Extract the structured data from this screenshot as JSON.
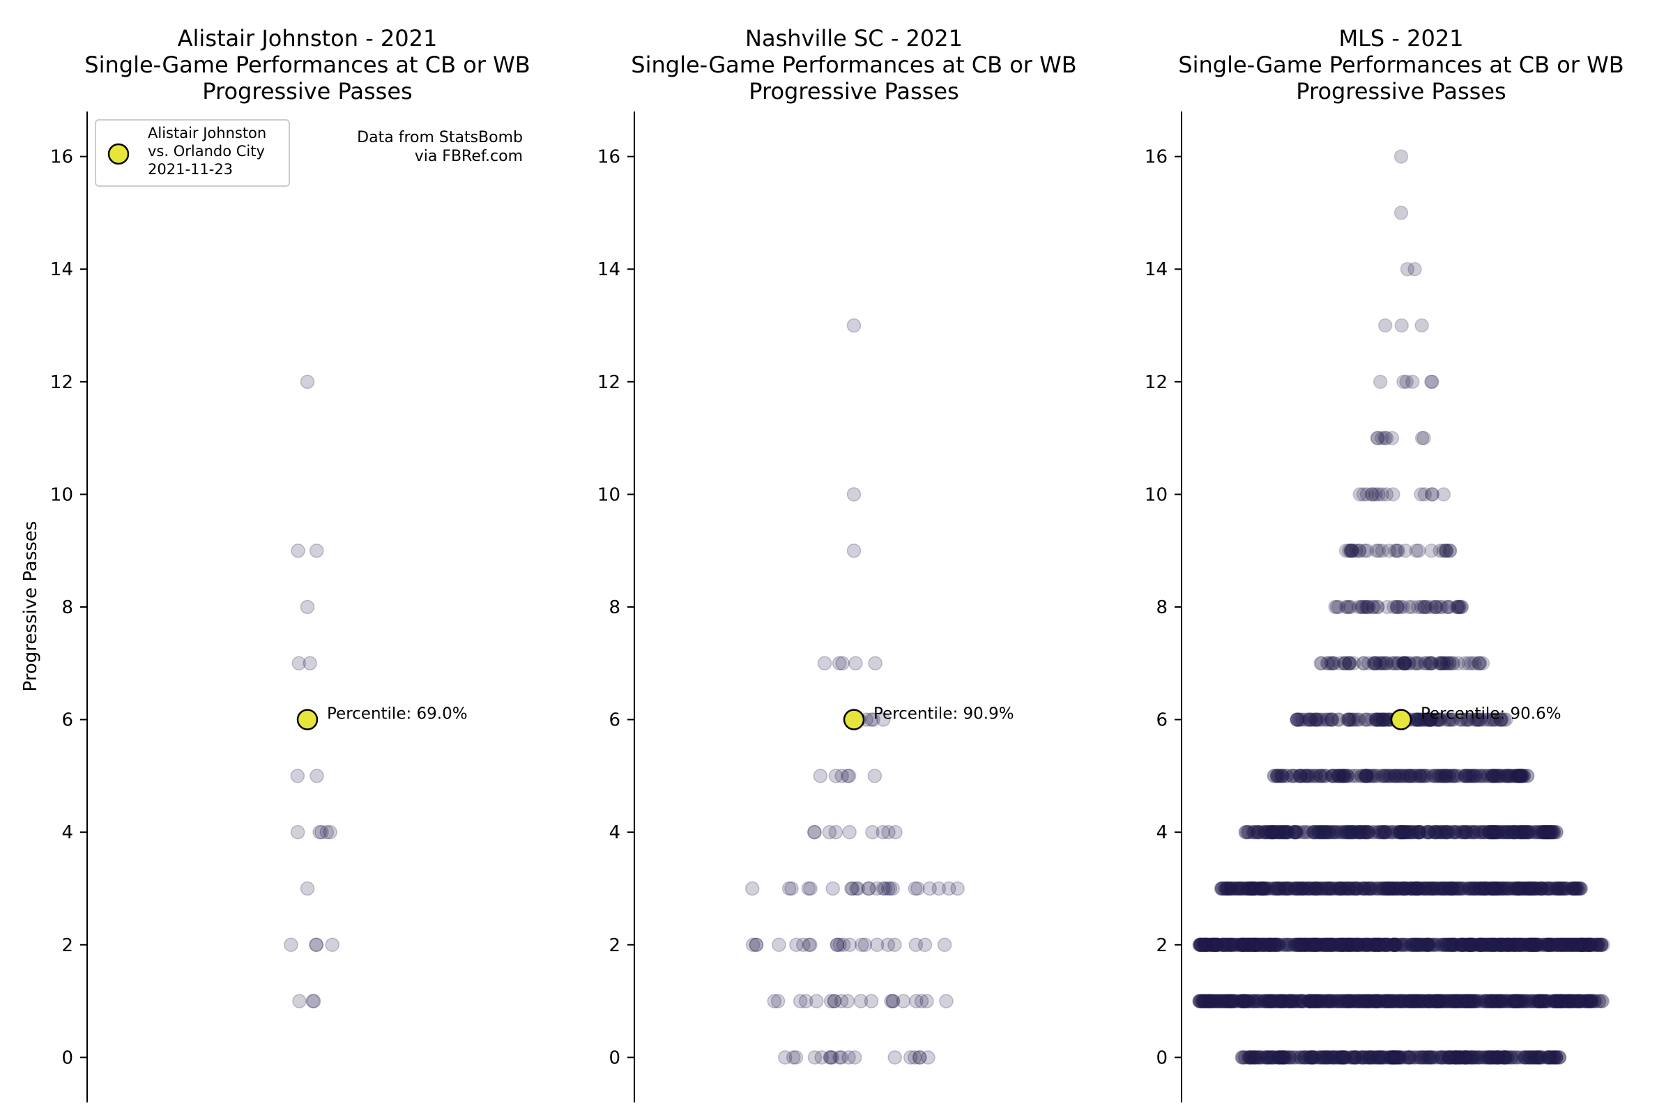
{
  "figure": {
    "ylabel": "Progressive Passes",
    "source_note": [
      "Data from StatsBomb",
      "via FBRef.com"
    ],
    "legend": {
      "lines": [
        "Alistair Johnston",
        "vs. Orlando City",
        "2021-11-23"
      ],
      "marker_color": "#e6e53a"
    },
    "colors": {
      "points": "#1e1b4b",
      "highlight": "#e6e53a",
      "highlight_edge": "#000000"
    }
  },
  "chart_data": [
    {
      "type": "scatter",
      "title_lines": [
        "Alistair Johnston - 2021",
        "Single-Game Performances at CB or WB",
        "Progressive Passes"
      ],
      "ylabel": "Progressive Passes",
      "ylim": [
        -0.8,
        16.8
      ],
      "yticks": [
        0,
        2,
        4,
        6,
        8,
        10,
        12,
        14,
        16
      ],
      "games_per_value": {
        "1": 3,
        "2": 4,
        "3": 1,
        "4": 5,
        "5": 2,
        "6": 1,
        "7": 2,
        "8": 1,
        "9": 2,
        "12": 1
      },
      "highlight": {
        "y": 6,
        "label": "Percentile: 69.0%"
      }
    },
    {
      "type": "scatter",
      "title_lines": [
        "Nashville SC - 2021",
        "Single-Game Performances at CB or WB",
        "Progressive Passes"
      ],
      "ylabel": "",
      "ylim": [
        -0.8,
        16.8
      ],
      "yticks": [
        0,
        2,
        4,
        6,
        8,
        10,
        12,
        14,
        16
      ],
      "games_per_value": {
        "0": 18,
        "1": 20,
        "2": 21,
        "3": 24,
        "4": 9,
        "5": 6,
        "6": 5,
        "7": 5,
        "9": 1,
        "10": 1,
        "13": 1
      },
      "highlight": {
        "y": 6,
        "label": "Percentile: 90.9%"
      }
    },
    {
      "type": "scatter",
      "title_lines": [
        "MLS - 2021",
        "Single-Game Performances at CB or WB",
        "Progressive Passes"
      ],
      "ylabel": "",
      "ylim": [
        -0.8,
        16.8
      ],
      "yticks": [
        0,
        2,
        4,
        6,
        8,
        10,
        12,
        14,
        16
      ],
      "games_per_value": {
        "0": 360,
        "1": 620,
        "2": 640,
        "3": 460,
        "4": 340,
        "5": 220,
        "6": 140,
        "7": 80,
        "8": 50,
        "9": 30,
        "10": 15,
        "11": 8,
        "12": 6,
        "13": 3,
        "14": 2,
        "15": 1,
        "16": 1
      },
      "highlight": {
        "y": 6,
        "label": "Percentile: 90.6%"
      }
    }
  ]
}
